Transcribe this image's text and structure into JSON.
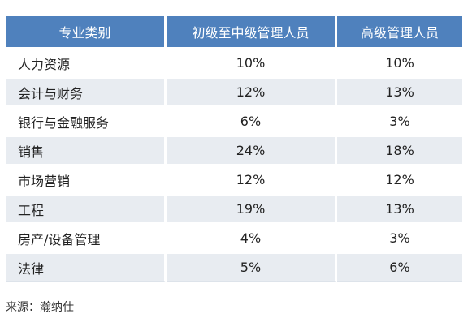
{
  "table": {
    "headers": [
      "专业类别",
      "初级至中级管理人员",
      "高级管理人员"
    ],
    "rows": [
      {
        "category": "人力资源",
        "junior_mid": "10%",
        "senior": "10%"
      },
      {
        "category": "会计与财务",
        "junior_mid": "12%",
        "senior": "13%"
      },
      {
        "category": "银行与金融服务",
        "junior_mid": "6%",
        "senior": "3%"
      },
      {
        "category": "销售",
        "junior_mid": "24%",
        "senior": "18%"
      },
      {
        "category": "市场营销",
        "junior_mid": "12%",
        "senior": "12%"
      },
      {
        "category": "工程",
        "junior_mid": "19%",
        "senior": "13%"
      },
      {
        "category": "房产/设备管理",
        "junior_mid": "4%",
        "senior": "3%"
      },
      {
        "category": "法律",
        "junior_mid": "5%",
        "senior": "6%"
      }
    ]
  },
  "source": "来源：瀚纳仕",
  "colors": {
    "header_bg": "#4f81bd",
    "header_text": "#ffffff",
    "stripe_bg": "#e8ecf1"
  }
}
